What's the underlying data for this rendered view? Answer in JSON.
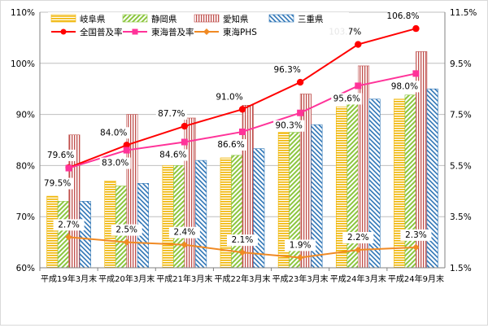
{
  "chart_data": {
    "type": "bar",
    "categories": [
      "平成19年3月末",
      "平成20年3月末",
      "平成21年3月末",
      "平成22年3月末",
      "平成23年3月末",
      "平成24年3月末",
      "平成24年9月末"
    ],
    "left_axis": {
      "min": 60,
      "max": 110,
      "ticks": [
        "60%",
        "70%",
        "80%",
        "90%",
        "100%",
        "110%"
      ],
      "tick_values": [
        60,
        70,
        80,
        90,
        100,
        110
      ]
    },
    "right_axis": {
      "min": 1.5,
      "max": 11.5,
      "ticks": [
        "1.5%",
        "3.5%",
        "5.5%",
        "7.5%",
        "9.5%",
        "11.5%"
      ],
      "tick_values": [
        1.5,
        3.5,
        5.5,
        7.5,
        9.5,
        11.5
      ]
    },
    "bar_series": [
      {
        "name": "岐阜県",
        "values": [
          74.0,
          77.0,
          80.0,
          81.5,
          86.5,
          91.5,
          93.0
        ],
        "color": "#f0b400",
        "pattern": "horizontal"
      },
      {
        "name": "静岡県",
        "values": [
          73.0,
          76.0,
          80.0,
          82.0,
          86.5,
          92.0,
          93.8
        ],
        "color": "#8cc63f",
        "pattern": "diagonal-right"
      },
      {
        "name": "愛知県",
        "values": [
          86.0,
          90.0,
          89.3,
          91.8,
          94.0,
          99.5,
          102.3
        ],
        "color": "#c0504d",
        "pattern": "vertical"
      },
      {
        "name": "三重県",
        "values": [
          73.0,
          76.5,
          81.0,
          83.3,
          88.0,
          93.0,
          95.0
        ],
        "color": "#2e75b6",
        "pattern": "diagonal-left"
      }
    ],
    "line_series": [
      {
        "name": "全国普及率",
        "axis": "left",
        "values": [
          79.6,
          84.0,
          87.7,
          91.0,
          96.3,
          103.7,
          106.8
        ],
        "labels": [
          "79.6%",
          "84.0%",
          "87.7%",
          "91.0%",
          "96.3%",
          "103.7%",
          "106.8%"
        ],
        "color": "#ff0000",
        "marker": "circle"
      },
      {
        "name": "東海普及率",
        "axis": "left",
        "values": [
          79.5,
          83.0,
          84.6,
          86.6,
          90.3,
          95.6,
          98.0
        ],
        "labels": [
          "79.5%",
          "83.0%",
          "84.6%",
          "86.6%",
          "90.3%",
          "95.6%",
          "98.0%"
        ],
        "color": "#ff3399",
        "marker": "square"
      },
      {
        "name": "東海PHS",
        "axis": "right",
        "values": [
          2.7,
          2.5,
          2.4,
          2.1,
          1.9,
          2.2,
          2.3
        ],
        "labels": [
          "2.7%",
          "2.5%",
          "2.4%",
          "2.1%",
          "1.9%",
          "2.2%",
          "2.3%"
        ],
        "color": "#f08a24",
        "marker": "diamond"
      }
    ],
    "legend": {
      "placement": "top-left",
      "columns": 4
    },
    "grid": true
  }
}
